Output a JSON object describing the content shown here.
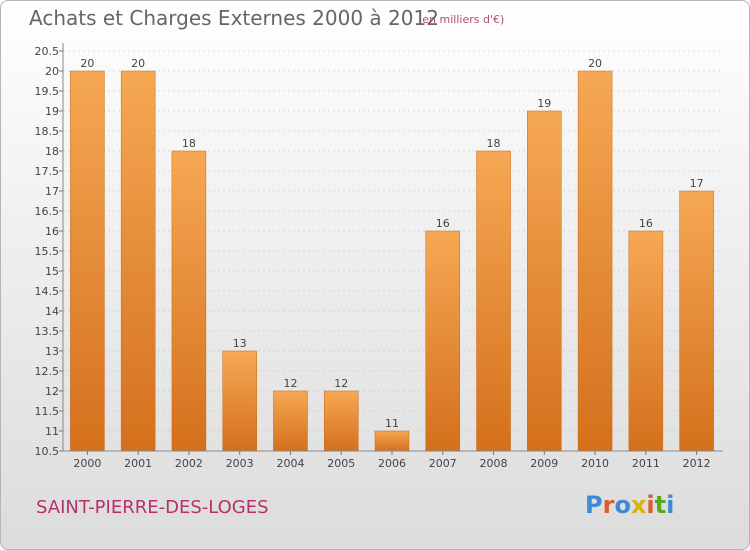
{
  "header": {
    "title": "Achats et Charges Externes 2000 à 2012",
    "subtitle": "(en milliers d'€)"
  },
  "footer": {
    "commune": "SAINT-PIERRE-DES-LOGES",
    "logo": "Proxiti",
    "logo_colors": [
      "#3c8ad8",
      "#e05a2a",
      "#3c8ad8",
      "#d9b400",
      "#e05a2a",
      "#5aa820",
      "#3c8ad8"
    ]
  },
  "colors": {
    "bar_top": "#f6a854",
    "bar_bottom": "#d4701c",
    "bar_edge": "#c86818",
    "axis_text": "#444444",
    "grid": "#bdbdbd",
    "title_text": "#666666",
    "commune_text": "#b8306a"
  },
  "chart_data": {
    "type": "bar",
    "title": "Achats et Charges Externes 2000 à 2012",
    "subtitle": "(en milliers d'€)",
    "categories": [
      "2000",
      "2001",
      "2002",
      "2003",
      "2004",
      "2005",
      "2006",
      "2007",
      "2008",
      "2009",
      "2010",
      "2011",
      "2012"
    ],
    "values": [
      20,
      20,
      18,
      13,
      12,
      12,
      11,
      16,
      18,
      19,
      20,
      16,
      17
    ],
    "data_labels": [
      "20",
      "20",
      "18",
      "13",
      "12",
      "12",
      "11",
      "16",
      "18",
      "19",
      "20",
      "16",
      "17"
    ],
    "ylim": [
      10.5,
      20.5
    ],
    "yticks": [
      "10.5",
      "11",
      "11.5",
      "12",
      "12.5",
      "13",
      "13.5",
      "14",
      "14.5",
      "15",
      "15.5",
      "16",
      "16.5",
      "17",
      "17.5",
      "18",
      "18.5",
      "19",
      "19.5",
      "20",
      "20.5"
    ],
    "xlabel": "",
    "ylabel": "",
    "grid": true
  }
}
